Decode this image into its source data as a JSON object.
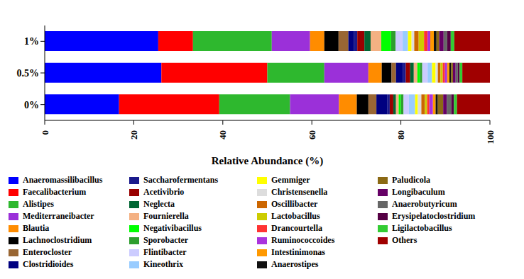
{
  "chart_data": {
    "type": "bar",
    "orientation": "horizontal",
    "stacked": true,
    "categories": [
      "1%",
      "0.5%",
      "0%"
    ],
    "xlim": [
      0,
      100
    ],
    "xticks": [
      0,
      20,
      40,
      60,
      80,
      100
    ],
    "x_label": "Relative Abundance (%)",
    "series": [
      {
        "name": "Anaeromassilibacillus",
        "color": "#0000ff",
        "values": [
          25.5,
          26.2,
          16.7
        ]
      },
      {
        "name": "Faecalibacterium",
        "color": "#ff0000",
        "values": [
          7.8,
          23.8,
          22.5
        ]
      },
      {
        "name": "Alistipes",
        "color": "#2eb82e",
        "values": [
          17.7,
          12.8,
          15.9
        ]
      },
      {
        "name": "Mediterraneibacter",
        "color": "#9b30d9",
        "values": [
          8.6,
          9.9,
          11.0
        ]
      },
      {
        "name": "Blautia",
        "color": "#ff8c00",
        "values": [
          3.2,
          3.0,
          4.0
        ]
      },
      {
        "name": "Lachnoclostridium",
        "color": "#000000",
        "values": [
          3.2,
          2.2,
          2.6
        ]
      },
      {
        "name": "Enterocloster",
        "color": "#996633",
        "values": [
          2.2,
          1.0,
          1.8
        ]
      },
      {
        "name": "Clostridioides",
        "color": "#000080",
        "values": [
          1.2,
          1.6,
          2.4
        ]
      },
      {
        "name": "Saccharofermentans",
        "color": "#1a1a8c",
        "values": [
          0.8,
          0.6,
          0.6
        ]
      },
      {
        "name": "Acetivibrio",
        "color": "#990000",
        "values": [
          1.6,
          1.0,
          0.8
        ]
      },
      {
        "name": "Neglecta",
        "color": "#006633",
        "values": [
          1.4,
          0.8,
          0.6
        ]
      },
      {
        "name": "Fournierella",
        "color": "#f4b183",
        "values": [
          2.4,
          0.8,
          0.6
        ]
      },
      {
        "name": "Negativibacillus",
        "color": "#00ff00",
        "values": [
          2.2,
          0.6,
          0.5
        ]
      },
      {
        "name": "Sporobacter",
        "color": "#2e9e2e",
        "values": [
          1.0,
          0.5,
          0.6
        ]
      },
      {
        "name": "Flintibacter",
        "color": "#ccccff",
        "values": [
          1.6,
          1.2,
          1.2
        ]
      },
      {
        "name": "Kineothrix",
        "color": "#99ccff",
        "values": [
          1.2,
          1.0,
          1.4
        ]
      },
      {
        "name": "Gemmiger",
        "color": "#ffff00",
        "values": [
          0.8,
          0.8,
          0.6
        ]
      },
      {
        "name": "Christensenella",
        "color": "#dddddd",
        "values": [
          0.6,
          0.5,
          0.8
        ]
      },
      {
        "name": "Oscillibacter",
        "color": "#cc6600",
        "values": [
          1.0,
          0.6,
          0.8
        ]
      },
      {
        "name": "Lactobacillus",
        "color": "#cccc00",
        "values": [
          1.2,
          0.5,
          0.5
        ]
      },
      {
        "name": "Drancourtella",
        "color": "#ff3333",
        "values": [
          0.8,
          0.5,
          0.5
        ]
      },
      {
        "name": "Ruminococcoides",
        "color": "#aa33dd",
        "values": [
          0.6,
          0.5,
          0.8
        ]
      },
      {
        "name": "Intestinimonas",
        "color": "#ff9900",
        "values": [
          0.8,
          0.5,
          0.6
        ]
      },
      {
        "name": "Anaerostipes",
        "color": "#111111",
        "values": [
          0.6,
          0.4,
          0.5
        ]
      },
      {
        "name": "Paludicola",
        "color": "#8b6914",
        "values": [
          0.6,
          0.4,
          1.2
        ]
      },
      {
        "name": "Longibaculum",
        "color": "#660066",
        "values": [
          1.0,
          0.6,
          0.8
        ]
      },
      {
        "name": "Anaerobutyricum",
        "color": "#666666",
        "values": [
          0.8,
          0.5,
          1.0
        ]
      },
      {
        "name": "Erysipelatoclostridium",
        "color": "#550044",
        "values": [
          0.8,
          0.4,
          0.6
        ]
      },
      {
        "name": "Ligilactobacillus",
        "color": "#33cc33",
        "values": [
          0.8,
          0.6,
          0.7
        ]
      },
      {
        "name": "Others",
        "color": "#a00000",
        "values": [
          8.0,
          6.2,
          7.4
        ]
      }
    ]
  }
}
